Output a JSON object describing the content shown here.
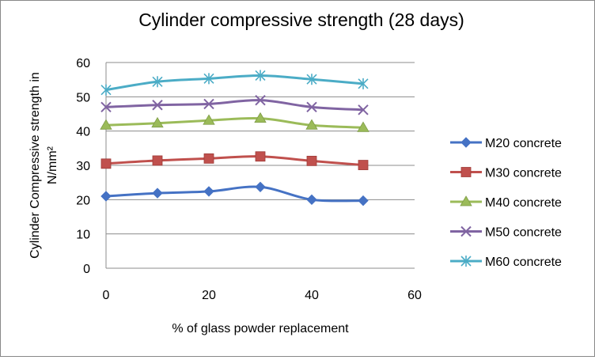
{
  "chart_data": {
    "type": "line",
    "title": "Cylinder compressive strength (28 days)",
    "xlabel": "%  of glass powder replacement",
    "ylabel_lines": [
      "Cylinder Compressive strength in",
      "N/mm²"
    ],
    "xlim": [
      0,
      60
    ],
    "ylim": [
      0,
      60
    ],
    "x_ticks": [
      "0",
      "20",
      "40",
      "60"
    ],
    "y_ticks": [
      "0",
      "10",
      "20",
      "30",
      "40",
      "50",
      "60"
    ],
    "grid": "horizontal",
    "legend_position": "right",
    "x": [
      0,
      10,
      20,
      30,
      40,
      50
    ],
    "series": [
      {
        "name": "M20 concrete",
        "values": [
          21.0,
          21.9,
          22.4,
          23.7,
          20.0,
          19.7
        ],
        "color": "#4572C4",
        "marker": "diamond"
      },
      {
        "name": "M30 concrete",
        "values": [
          30.5,
          31.4,
          32.0,
          32.6,
          31.3,
          30.1
        ],
        "color": "#C0504D",
        "marker": "square"
      },
      {
        "name": "M40 concrete",
        "values": [
          41.7,
          42.3,
          43.1,
          43.7,
          41.7,
          41.0
        ],
        "color": "#9BBB59",
        "marker": "triangle"
      },
      {
        "name": "M50 concrete",
        "values": [
          47.0,
          47.6,
          47.9,
          49.0,
          47.0,
          46.2
        ],
        "color": "#8064A2",
        "marker": "x"
      },
      {
        "name": "M60 concrete",
        "values": [
          52.0,
          54.4,
          55.3,
          56.2,
          55.1,
          53.8
        ],
        "color": "#4BACC6",
        "marker": "star"
      }
    ]
  }
}
